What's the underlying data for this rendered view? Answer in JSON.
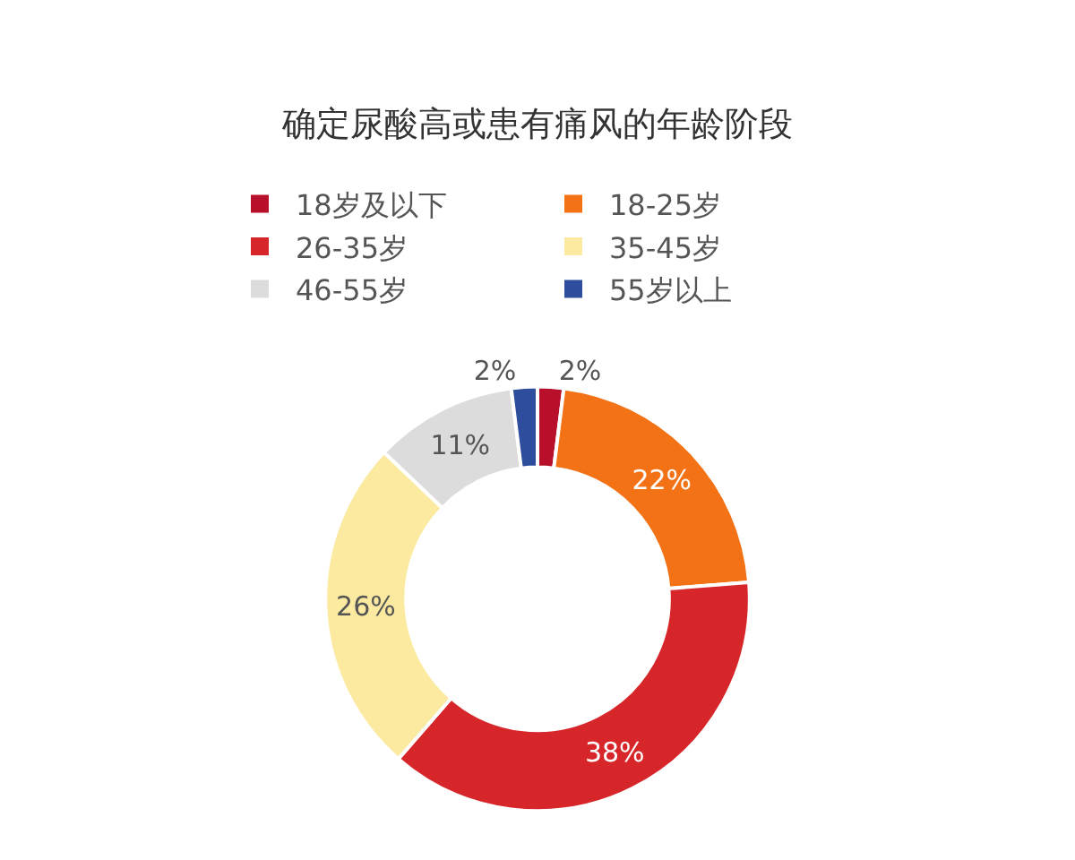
{
  "chart_data": {
    "type": "donut",
    "title": "确定尿酸高或患有痛风的年龄阶段",
    "categories": [
      "18岁及以下",
      "18-25岁",
      "26-35岁",
      "35-45岁",
      "46-55岁",
      "55岁以上"
    ],
    "values": [
      2,
      22,
      38,
      26,
      11,
      2
    ],
    "value_labels": [
      "2%",
      "22%",
      "38%",
      "26%",
      "11%",
      "2%"
    ],
    "colors": [
      "#b8102a",
      "#f47216",
      "#d7262a",
      "#fbeaa0",
      "#dcdcdc",
      "#2e4d9c"
    ],
    "legend": "top"
  }
}
